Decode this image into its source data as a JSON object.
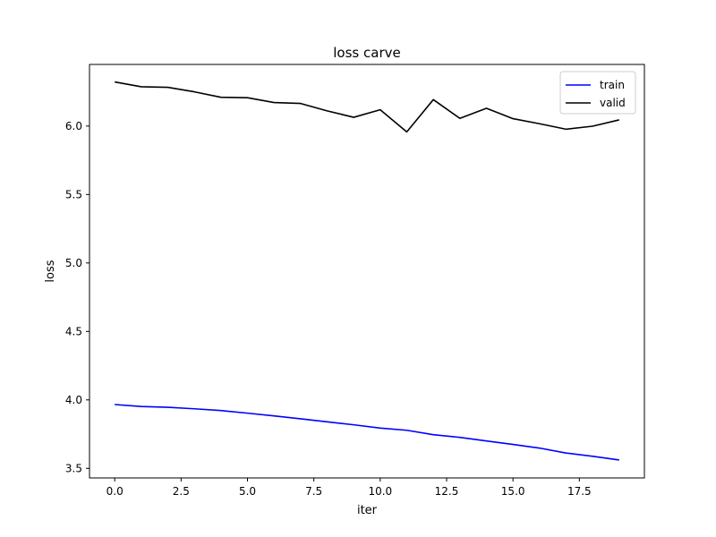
{
  "chart_data": {
    "type": "line",
    "title": "loss carve",
    "xlabel": "iter",
    "ylabel": "loss",
    "xlim": [
      -0.95,
      19.95
    ],
    "ylim": [
      3.43,
      6.45
    ],
    "xticks": [
      0.0,
      2.5,
      5.0,
      7.5,
      10.0,
      12.5,
      15.0,
      17.5
    ],
    "xtick_labels": [
      "0.0",
      "2.5",
      "5.0",
      "7.5",
      "10.0",
      "12.5",
      "15.0",
      "17.5"
    ],
    "yticks": [
      3.5,
      4.0,
      4.5,
      5.0,
      5.5,
      6.0
    ],
    "ytick_labels": [
      "3.5",
      "4.0",
      "4.5",
      "5.0",
      "5.5",
      "6.0"
    ],
    "grid": false,
    "legend_position": "top-right",
    "x": [
      0,
      1,
      2,
      3,
      4,
      5,
      6,
      7,
      8,
      9,
      10,
      11,
      12,
      13,
      14,
      15,
      16,
      17,
      18,
      19
    ],
    "series": [
      {
        "name": "train",
        "color": "#0000ff",
        "values": [
          3.966,
          3.952,
          3.946,
          3.935,
          3.922,
          3.903,
          3.883,
          3.862,
          3.84,
          3.818,
          3.794,
          3.778,
          3.746,
          3.726,
          3.7,
          3.675,
          3.648,
          3.612,
          3.588,
          3.561
        ]
      },
      {
        "name": "valid",
        "color": "#000000",
        "values": [
          6.322,
          6.287,
          6.283,
          6.25,
          6.21,
          6.207,
          6.172,
          6.165,
          6.111,
          6.064,
          6.119,
          5.957,
          6.193,
          6.056,
          6.13,
          6.054,
          6.017,
          5.977,
          5.999,
          6.045
        ]
      }
    ]
  }
}
